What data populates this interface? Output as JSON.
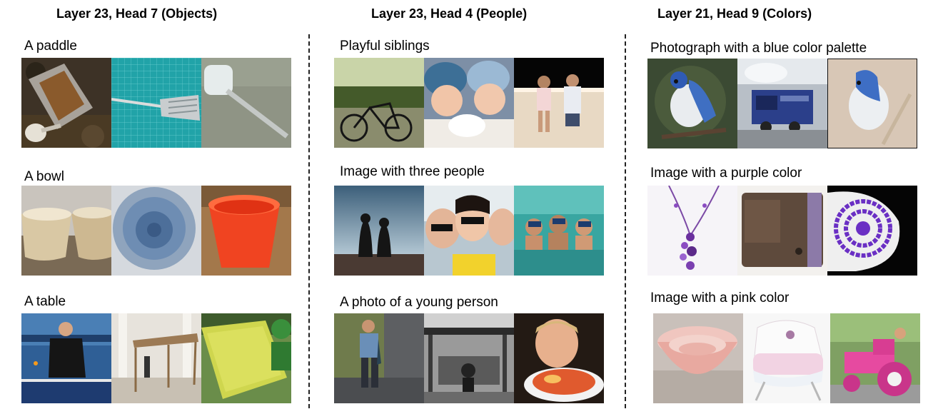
{
  "columns": [
    {
      "title": "Layer 23, Head 7 (Objects)",
      "rows": [
        {
          "prompt": "A paddle",
          "images": [
            "rusty-shovel-photo",
            "spatula-on-grid-photo",
            "plastic-spatula-photo"
          ]
        },
        {
          "prompt": "A bowl",
          "images": [
            "ceramic-bowls-photo",
            "blue-bowl-photo",
            "red-bucket-photo"
          ]
        },
        {
          "prompt": "A table",
          "images": [
            "table-tennis-player-photo",
            "wooden-table-frame-photo",
            "green-plastic-table-photo"
          ]
        }
      ]
    },
    {
      "title": "Layer 23, Head 4 (People)",
      "rows": [
        {
          "prompt": "Playful siblings",
          "images": [
            "tandem-bicycle-photo",
            "children-blowing-snow-photo",
            "two-children-at-wall-photo"
          ]
        },
        {
          "prompt": "Image with three people",
          "images": [
            "three-silhouettes-photo",
            "three-friends-selfie-photo",
            "three-snorkelers-photo"
          ]
        },
        {
          "prompt": "A photo of a young person",
          "images": [
            "boy-holding-fish-photo",
            "market-scene-bw-photo",
            "boy-with-crab-plate-photo"
          ]
        }
      ]
    },
    {
      "title": "Layer 21, Head 9 (Colors)",
      "rows": [
        {
          "prompt": "Photograph with a blue color palette",
          "images": [
            "blue-jay-branch-photo",
            "blue-steam-train-photo",
            "blue-jay-perched-photo"
          ]
        },
        {
          "prompt": "Image with a purple color",
          "images": [
            "purple-necklace-photo",
            "brown-wallet-photo",
            "purple-bead-spiral-photo"
          ]
        },
        {
          "prompt": "Image with a pink color",
          "images": [
            "pink-bowls-photo",
            "pink-baby-bassinet-photo",
            "pink-tractor-photo"
          ]
        }
      ]
    }
  ]
}
